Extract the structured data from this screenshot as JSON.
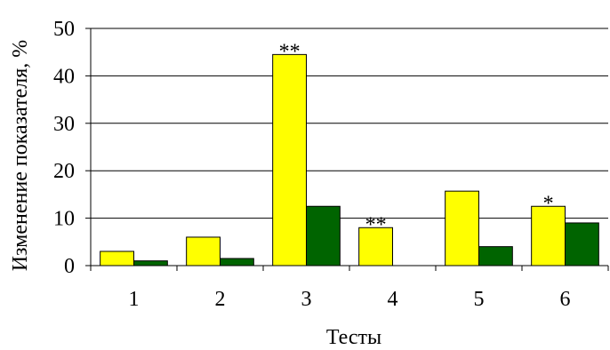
{
  "chart_data": {
    "type": "bar",
    "categories": [
      "1",
      "2",
      "3",
      "4",
      "5",
      "6"
    ],
    "series": [
      {
        "color": "#FFFF00",
        "values": [
          3,
          6,
          44.5,
          8,
          15.7,
          12.5
        ]
      },
      {
        "color": "#006400",
        "values": [
          1,
          1.5,
          12.5,
          0,
          4,
          9
        ]
      }
    ],
    "annotations": [
      {
        "category_index": 2,
        "text": "**"
      },
      {
        "category_index": 3,
        "text": "**"
      },
      {
        "category_index": 5,
        "text": "*"
      }
    ],
    "title": "",
    "xlabel": "Тесты",
    "ylabel": "Изменение показателя, %",
    "ylim": [
      0,
      50
    ],
    "yticks": [
      "0",
      "10",
      "20",
      "30",
      "40",
      "50"
    ],
    "grid": "horizontal",
    "legend": "none"
  }
}
